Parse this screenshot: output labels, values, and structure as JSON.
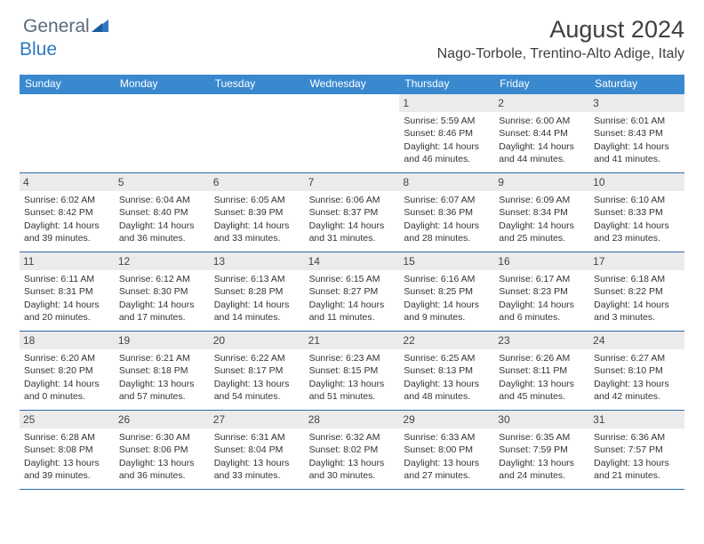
{
  "brand": {
    "text1": "General",
    "text2": "Blue"
  },
  "title": "August 2024",
  "subtitle": "Nago-Torbole, Trentino-Alto Adige, Italy",
  "colors": {
    "header_bg": "#3a89cf",
    "header_text": "#ffffff",
    "border": "#2f6aa8",
    "daynum_bg": "#ebebeb",
    "logo_gray": "#5a6b7a",
    "logo_blue": "#2f78c0"
  },
  "day_headers": [
    "Sunday",
    "Monday",
    "Tuesday",
    "Wednesday",
    "Thursday",
    "Friday",
    "Saturday"
  ],
  "weeks": [
    [
      {
        "n": "",
        "l": [
          "",
          "",
          "",
          ""
        ]
      },
      {
        "n": "",
        "l": [
          "",
          "",
          "",
          ""
        ]
      },
      {
        "n": "",
        "l": [
          "",
          "",
          "",
          ""
        ]
      },
      {
        "n": "",
        "l": [
          "",
          "",
          "",
          ""
        ]
      },
      {
        "n": "1",
        "l": [
          "Sunrise: 5:59 AM",
          "Sunset: 8:46 PM",
          "Daylight: 14 hours",
          "and 46 minutes."
        ]
      },
      {
        "n": "2",
        "l": [
          "Sunrise: 6:00 AM",
          "Sunset: 8:44 PM",
          "Daylight: 14 hours",
          "and 44 minutes."
        ]
      },
      {
        "n": "3",
        "l": [
          "Sunrise: 6:01 AM",
          "Sunset: 8:43 PM",
          "Daylight: 14 hours",
          "and 41 minutes."
        ]
      }
    ],
    [
      {
        "n": "4",
        "l": [
          "Sunrise: 6:02 AM",
          "Sunset: 8:42 PM",
          "Daylight: 14 hours",
          "and 39 minutes."
        ]
      },
      {
        "n": "5",
        "l": [
          "Sunrise: 6:04 AM",
          "Sunset: 8:40 PM",
          "Daylight: 14 hours",
          "and 36 minutes."
        ]
      },
      {
        "n": "6",
        "l": [
          "Sunrise: 6:05 AM",
          "Sunset: 8:39 PM",
          "Daylight: 14 hours",
          "and 33 minutes."
        ]
      },
      {
        "n": "7",
        "l": [
          "Sunrise: 6:06 AM",
          "Sunset: 8:37 PM",
          "Daylight: 14 hours",
          "and 31 minutes."
        ]
      },
      {
        "n": "8",
        "l": [
          "Sunrise: 6:07 AM",
          "Sunset: 8:36 PM",
          "Daylight: 14 hours",
          "and 28 minutes."
        ]
      },
      {
        "n": "9",
        "l": [
          "Sunrise: 6:09 AM",
          "Sunset: 8:34 PM",
          "Daylight: 14 hours",
          "and 25 minutes."
        ]
      },
      {
        "n": "10",
        "l": [
          "Sunrise: 6:10 AM",
          "Sunset: 8:33 PM",
          "Daylight: 14 hours",
          "and 23 minutes."
        ]
      }
    ],
    [
      {
        "n": "11",
        "l": [
          "Sunrise: 6:11 AM",
          "Sunset: 8:31 PM",
          "Daylight: 14 hours",
          "and 20 minutes."
        ]
      },
      {
        "n": "12",
        "l": [
          "Sunrise: 6:12 AM",
          "Sunset: 8:30 PM",
          "Daylight: 14 hours",
          "and 17 minutes."
        ]
      },
      {
        "n": "13",
        "l": [
          "Sunrise: 6:13 AM",
          "Sunset: 8:28 PM",
          "Daylight: 14 hours",
          "and 14 minutes."
        ]
      },
      {
        "n": "14",
        "l": [
          "Sunrise: 6:15 AM",
          "Sunset: 8:27 PM",
          "Daylight: 14 hours",
          "and 11 minutes."
        ]
      },
      {
        "n": "15",
        "l": [
          "Sunrise: 6:16 AM",
          "Sunset: 8:25 PM",
          "Daylight: 14 hours",
          "and 9 minutes."
        ]
      },
      {
        "n": "16",
        "l": [
          "Sunrise: 6:17 AM",
          "Sunset: 8:23 PM",
          "Daylight: 14 hours",
          "and 6 minutes."
        ]
      },
      {
        "n": "17",
        "l": [
          "Sunrise: 6:18 AM",
          "Sunset: 8:22 PM",
          "Daylight: 14 hours",
          "and 3 minutes."
        ]
      }
    ],
    [
      {
        "n": "18",
        "l": [
          "Sunrise: 6:20 AM",
          "Sunset: 8:20 PM",
          "Daylight: 14 hours",
          "and 0 minutes."
        ]
      },
      {
        "n": "19",
        "l": [
          "Sunrise: 6:21 AM",
          "Sunset: 8:18 PM",
          "Daylight: 13 hours",
          "and 57 minutes."
        ]
      },
      {
        "n": "20",
        "l": [
          "Sunrise: 6:22 AM",
          "Sunset: 8:17 PM",
          "Daylight: 13 hours",
          "and 54 minutes."
        ]
      },
      {
        "n": "21",
        "l": [
          "Sunrise: 6:23 AM",
          "Sunset: 8:15 PM",
          "Daylight: 13 hours",
          "and 51 minutes."
        ]
      },
      {
        "n": "22",
        "l": [
          "Sunrise: 6:25 AM",
          "Sunset: 8:13 PM",
          "Daylight: 13 hours",
          "and 48 minutes."
        ]
      },
      {
        "n": "23",
        "l": [
          "Sunrise: 6:26 AM",
          "Sunset: 8:11 PM",
          "Daylight: 13 hours",
          "and 45 minutes."
        ]
      },
      {
        "n": "24",
        "l": [
          "Sunrise: 6:27 AM",
          "Sunset: 8:10 PM",
          "Daylight: 13 hours",
          "and 42 minutes."
        ]
      }
    ],
    [
      {
        "n": "25",
        "l": [
          "Sunrise: 6:28 AM",
          "Sunset: 8:08 PM",
          "Daylight: 13 hours",
          "and 39 minutes."
        ]
      },
      {
        "n": "26",
        "l": [
          "Sunrise: 6:30 AM",
          "Sunset: 8:06 PM",
          "Daylight: 13 hours",
          "and 36 minutes."
        ]
      },
      {
        "n": "27",
        "l": [
          "Sunrise: 6:31 AM",
          "Sunset: 8:04 PM",
          "Daylight: 13 hours",
          "and 33 minutes."
        ]
      },
      {
        "n": "28",
        "l": [
          "Sunrise: 6:32 AM",
          "Sunset: 8:02 PM",
          "Daylight: 13 hours",
          "and 30 minutes."
        ]
      },
      {
        "n": "29",
        "l": [
          "Sunrise: 6:33 AM",
          "Sunset: 8:00 PM",
          "Daylight: 13 hours",
          "and 27 minutes."
        ]
      },
      {
        "n": "30",
        "l": [
          "Sunrise: 6:35 AM",
          "Sunset: 7:59 PM",
          "Daylight: 13 hours",
          "and 24 minutes."
        ]
      },
      {
        "n": "31",
        "l": [
          "Sunrise: 6:36 AM",
          "Sunset: 7:57 PM",
          "Daylight: 13 hours",
          "and 21 minutes."
        ]
      }
    ]
  ]
}
